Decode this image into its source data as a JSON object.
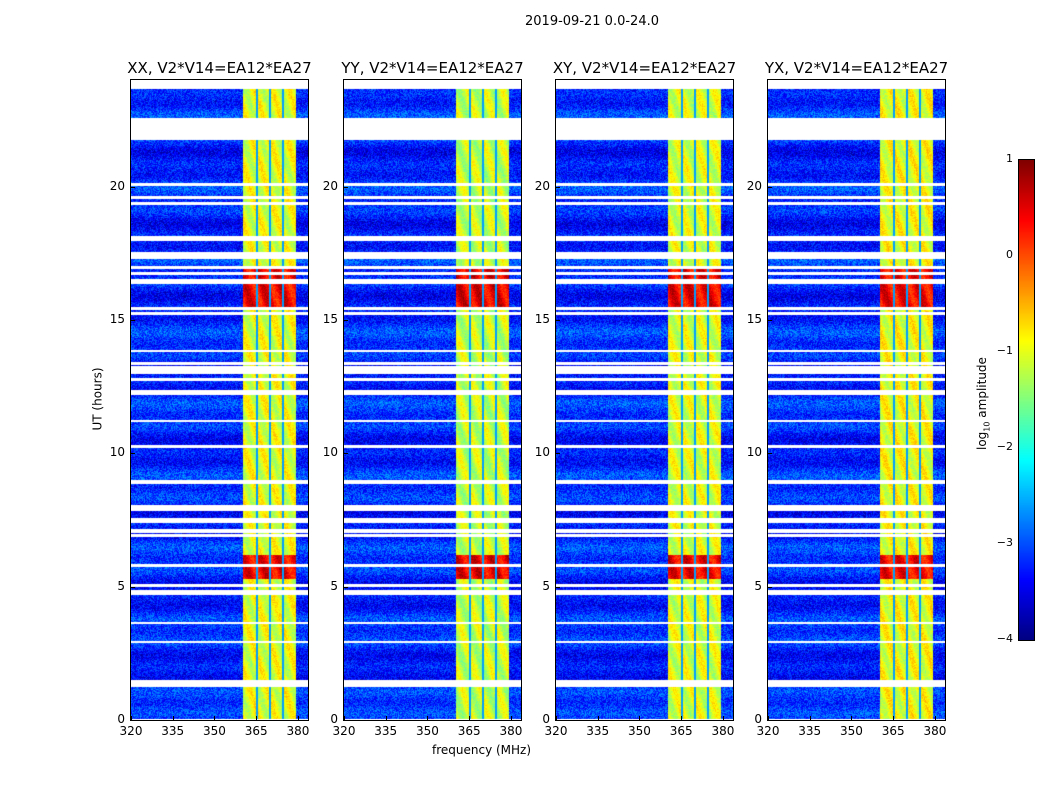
{
  "suptitle": "2019-09-21 0.0-24.0",
  "chart_data": {
    "type": "heatmap",
    "panels": [
      {
        "title": "XX, V2*V14=EA12*EA27",
        "scale": 1.0
      },
      {
        "title": "YY, V2*V14=EA12*EA27",
        "scale": 1.15
      },
      {
        "title": "XY, V2*V14=EA12*EA27",
        "scale": 1.05
      },
      {
        "title": "YX, V2*V14=EA12*EA27",
        "scale": 0.95
      }
    ],
    "xlabel": "frequency (MHz)",
    "ylabel": "UT (hours)",
    "xlim": [
      320,
      383.6
    ],
    "ylim": [
      0,
      24
    ],
    "xticks": [
      "320",
      "335",
      "350",
      "365",
      "380"
    ],
    "yticks": [
      "0",
      "5",
      "10",
      "15",
      "20"
    ],
    "colorbar": {
      "label": "log10 amplitude",
      "label_main": "log",
      "label_sub": "10",
      "label_rest": " amplitude",
      "range": [
        -4,
        1
      ],
      "ticks": [
        "1",
        "0",
        "−1",
        "−2",
        "−3",
        "−4"
      ],
      "colormap": "jet"
    },
    "background_level": -3.2,
    "rfi_band_mhz": [
      360,
      379
    ],
    "rfi_subband_edges_mhz": [
      365,
      369.6,
      374.6
    ],
    "rfi_level": -1.0,
    "strong_rfi_hours": [
      [
        15.5,
        17.0
      ],
      [
        5.3,
        6.2
      ]
    ],
    "strong_rfi_level": 0.4,
    "flagged_hours": [
      [
        23.7,
        24
      ],
      [
        21.8,
        22.6
      ],
      [
        17.3,
        17.5
      ],
      [
        13.0,
        13.3
      ],
      [
        12.2,
        12.4
      ],
      [
        7.4,
        7.6
      ],
      [
        4.7,
        4.9
      ],
      [
        1.3,
        1.5
      ]
    ]
  }
}
